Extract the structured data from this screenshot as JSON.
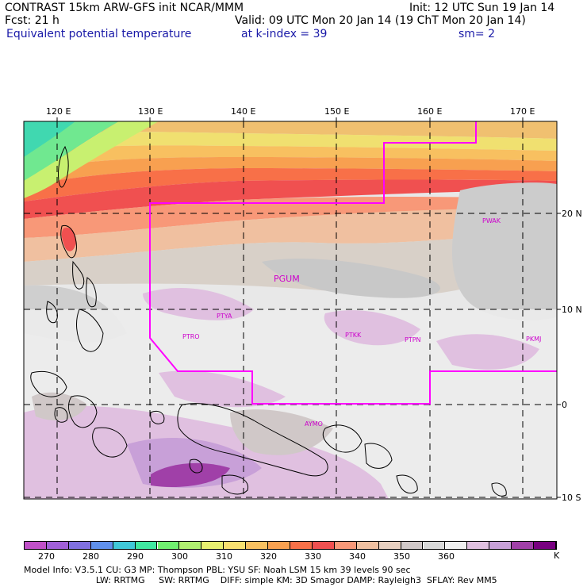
{
  "header": {
    "line1_left": "CONTRAST 15km ARW-GFS init   NCAR/MMM",
    "line1_right": "Init: 12 UTC Sun 19 Jan 14",
    "line2_left": "Fcst:    21 h",
    "line2_right": "Valid: 09 UTC Mon 20 Jan 14 (19 ChT Mon 20 Jan 14)",
    "line3_left": "Equivalent potential temperature",
    "line3_mid": "at k-index =  39",
    "line3_right": "sm= 2"
  },
  "map": {
    "lon_labels": [
      "120 E",
      "130 E",
      "140 E",
      "150 E",
      "160 E",
      "170 E"
    ],
    "lat_labels": [
      "20 N",
      "10 N",
      "0",
      "10 S"
    ],
    "stations": [
      "PGUM",
      "PTYA",
      "PTRO",
      "PTKK",
      "PTPN",
      "PWAK",
      "PKMJ",
      "AYMO"
    ],
    "boundary_color": "#ff00ff",
    "station_color": "#cc00cc"
  },
  "colorbar": {
    "colors": [
      "#c050c8",
      "#a060d8",
      "#8070e0",
      "#6090ec",
      "#40c8d8",
      "#40e8a0",
      "#70f070",
      "#b0f070",
      "#e8f070",
      "#f8e070",
      "#f8c060",
      "#f8a050",
      "#f87048",
      "#f05050",
      "#f89878",
      "#f0c0a0",
      "#e8d0c0",
      "#d0c8c8",
      "#d8d8d8",
      "#f0f0f0",
      "#e0c0e0",
      "#c8a0d8",
      "#a040a8",
      "#780080"
    ],
    "labels": [
      "270",
      "280",
      "290",
      "300",
      "310",
      "320",
      "330",
      "340",
      "350",
      "360"
    ],
    "unit": "K"
  },
  "footer": {
    "line1": "Model Info: V3.5.1     CU: G3        MP: Thompson      PBL: YSU        SF: Noah LSM      15 km    39 levels    90 sec",
    "line2": "                          LW: RRTMG     SW: RRTMG    DIFF: simple KM: 3D Smagor DAMP: Rayleigh3  SFLAY: Rev MM5"
  }
}
